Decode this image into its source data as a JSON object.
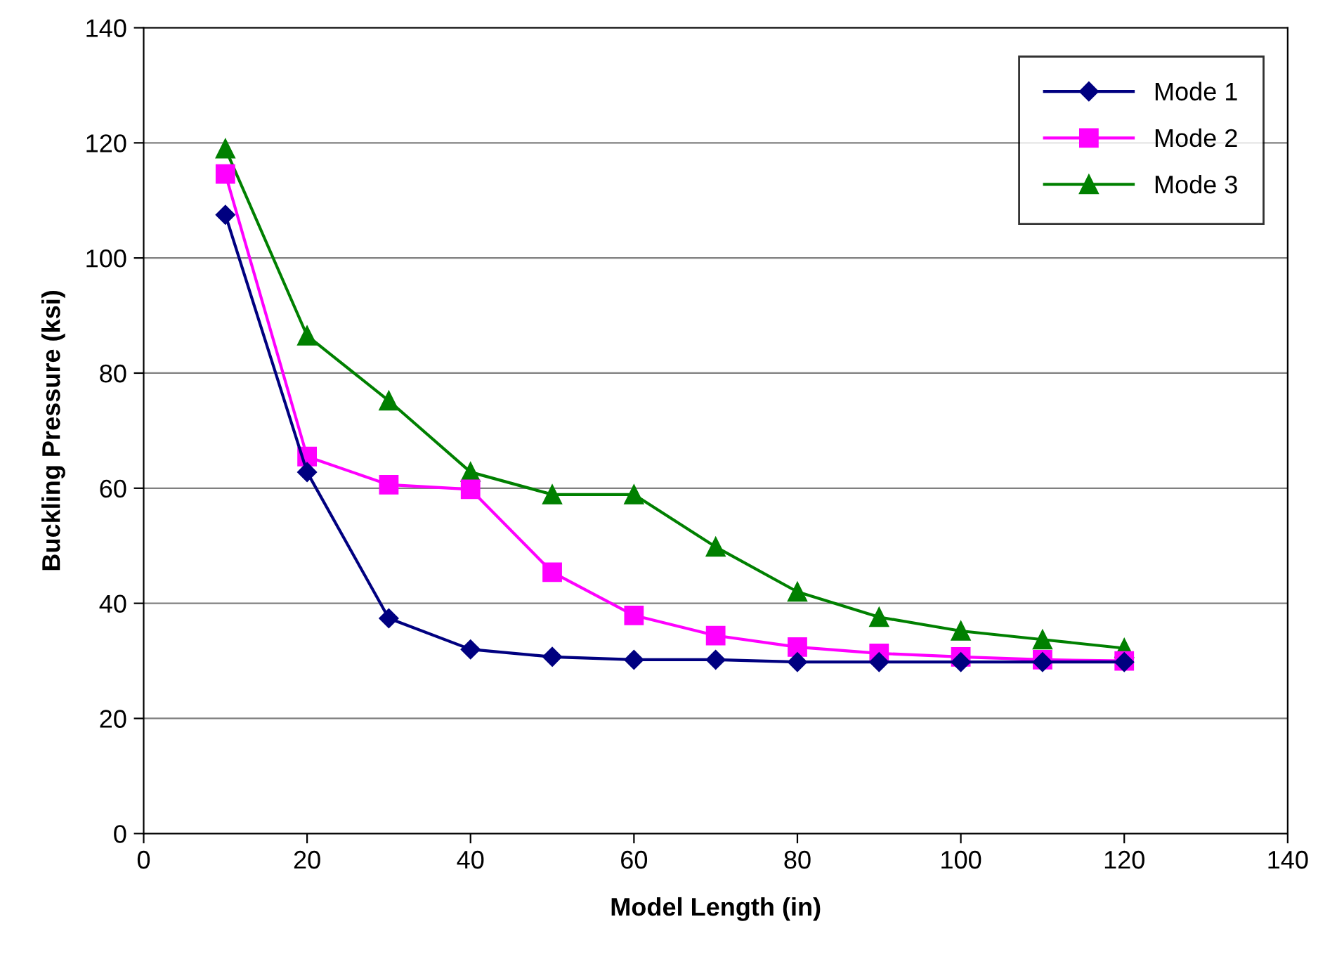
{
  "chart_data": {
    "type": "line",
    "xlabel": "Model Length (in)",
    "ylabel": "Buckling Pressure (ksi)",
    "x": [
      10,
      20,
      30,
      40,
      50,
      60,
      70,
      80,
      90,
      100,
      110,
      120
    ],
    "series": [
      {
        "name": "Mode 1",
        "color": "#000080",
        "marker": "diamond",
        "values": [
          107.5,
          62.8,
          37.4,
          32,
          30.7,
          30.2,
          30.2,
          29.8,
          29.8,
          29.8,
          29.8,
          29.8
        ]
      },
      {
        "name": "Mode 2",
        "color": "#ff00ff",
        "marker": "square",
        "values": [
          114.6,
          65.5,
          60.6,
          59.8,
          45.4,
          37.9,
          34.4,
          32.4,
          31.3,
          30.7,
          30.2,
          30.0
        ]
      },
      {
        "name": "Mode 3",
        "color": "#008000",
        "marker": "triangle",
        "values": [
          119,
          86.5,
          75.2,
          62.8,
          58.9,
          58.9,
          49.8,
          42,
          37.6,
          35.2,
          33.7,
          32.2
        ]
      }
    ],
    "xlim": [
      0,
      140
    ],
    "xticks": [
      0,
      20,
      40,
      60,
      80,
      100,
      120,
      140
    ],
    "ylim": [
      0,
      140
    ],
    "yticks": [
      0,
      20,
      40,
      60,
      80,
      100,
      120,
      140
    ],
    "grid": "y",
    "legend": "top right",
    "line_style": "solid"
  }
}
